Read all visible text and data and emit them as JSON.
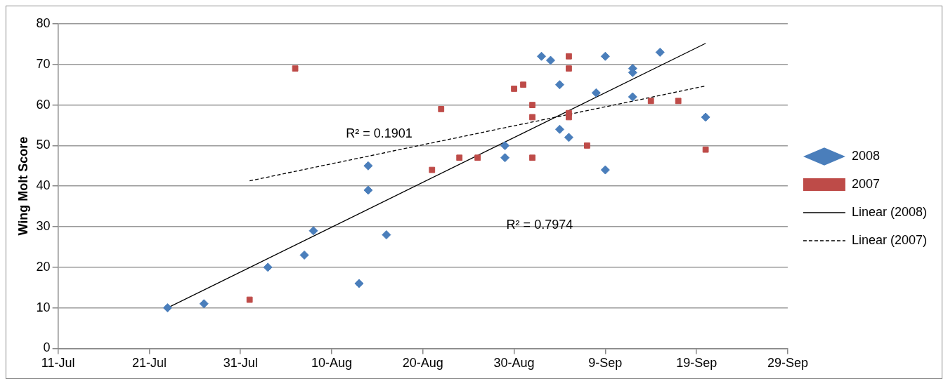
{
  "chart_data": {
    "type": "scatter",
    "ylabel": "Wing Molt Score",
    "xlim": [
      "--07-11",
      "--09-29"
    ],
    "xticks": [
      {
        "value": "--07-11",
        "label": "11-Jul"
      },
      {
        "value": "--07-21",
        "label": "21-Jul"
      },
      {
        "value": "--07-31",
        "label": "31-Jul"
      },
      {
        "value": "--08-10",
        "label": "10-Aug"
      },
      {
        "value": "--08-20",
        "label": "20-Aug"
      },
      {
        "value": "--08-30",
        "label": "30-Aug"
      },
      {
        "value": "--09-09",
        "label": "9-Sep"
      },
      {
        "value": "--09-19",
        "label": "19-Sep"
      },
      {
        "value": "--09-29",
        "label": "29-Sep"
      }
    ],
    "ylim": [
      0,
      80
    ],
    "yticks": [
      0,
      10,
      20,
      30,
      40,
      50,
      60,
      70,
      80
    ],
    "grid": "y",
    "legend": "right",
    "series": [
      {
        "name": "2008",
        "type": "scatter",
        "marker": "diamond",
        "color": "#4a7ebb",
        "x": [
          "--07-23",
          "--07-27",
          "--08-03",
          "--08-07",
          "--08-08",
          "--08-13",
          "--08-14",
          "--08-14",
          "--08-16",
          "--08-29",
          "--08-29",
          "--09-02",
          "--09-03",
          "--09-04",
          "--09-04",
          "--09-05",
          "--09-08",
          "--09-09",
          "--09-09",
          "--09-12",
          "--09-12",
          "--09-12",
          "--09-15",
          "--09-20"
        ],
        "values": [
          10,
          11,
          20,
          23,
          29,
          16,
          45,
          39,
          28,
          50,
          47,
          72,
          71,
          65,
          54,
          52,
          63,
          72,
          44,
          69,
          68,
          62,
          73,
          57
        ]
      },
      {
        "name": "2007",
        "type": "scatter",
        "marker": "square",
        "color": "#be4b48",
        "x": [
          "--08-01",
          "--08-06",
          "--08-21",
          "--08-22",
          "--08-24",
          "--08-26",
          "--08-30",
          "--08-31",
          "--09-01",
          "--09-01",
          "--09-01",
          "--09-05",
          "--09-05",
          "--09-05",
          "--09-05",
          "--09-07",
          "--09-14",
          "--09-17",
          "--09-20"
        ],
        "values": [
          12,
          69,
          44,
          59,
          47,
          47,
          64,
          65,
          60,
          57,
          47,
          72,
          69,
          58,
          57,
          50,
          61,
          61,
          49
        ]
      },
      {
        "name": "Linear (2008)",
        "type": "line",
        "marker": "none",
        "line_style": "solid",
        "color": "#000000",
        "x": [
          "--07-23",
          "--09-20"
        ],
        "values": [
          10,
          75.2
        ]
      },
      {
        "name": "Linear (2007)",
        "type": "line",
        "marker": "none",
        "line_style": "dashed",
        "color": "#000000",
        "x": [
          "--08-01",
          "--09-20"
        ],
        "values": [
          41.3,
          64.7
        ]
      }
    ],
    "annotations": [
      "R² = 0.1901",
      "R² = 0.7974"
    ]
  }
}
